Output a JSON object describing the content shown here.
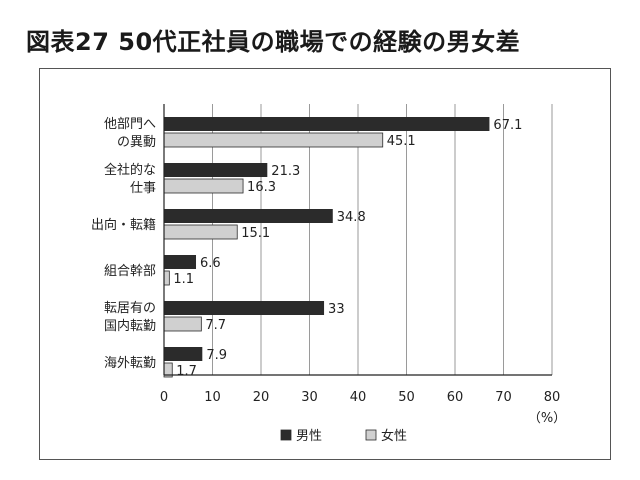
{
  "figure": {
    "title": "図表27 50代正社員の職場での経験の男女差"
  },
  "chart_data": {
    "type": "bar",
    "orientation": "horizontal",
    "categories": [
      [
        "他部門へ",
        "の異動"
      ],
      [
        "全社的な",
        "仕事"
      ],
      [
        "出向・転籍"
      ],
      [
        "組合幹部"
      ],
      [
        "転居有の",
        "国内転勤"
      ],
      [
        "海外転勤"
      ]
    ],
    "series": [
      {
        "name": "男性",
        "values": [
          67.1,
          21.3,
          34.8,
          6.6,
          33,
          7.9
        ],
        "color": "#2b2b2b",
        "labels": [
          "67.1",
          "21.3",
          "34.8",
          "6.6",
          "33",
          "7.9"
        ]
      },
      {
        "name": "女性",
        "values": [
          45.1,
          16.3,
          15.1,
          1.1,
          7.7,
          1.7
        ],
        "color": "#d0d0d0",
        "labels": [
          "45.1",
          "16.3",
          "15.1",
          "1.1",
          "7.7",
          "1.7"
        ]
      }
    ],
    "xlim": [
      0,
      80
    ],
    "xticks": [
      0,
      10,
      20,
      30,
      40,
      50,
      60,
      70,
      80
    ],
    "x_unit": "（%）",
    "grid": "vertical",
    "legend": "bottom-center"
  }
}
